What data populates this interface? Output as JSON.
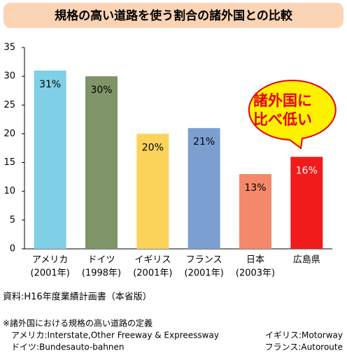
{
  "chart_data": {
    "type": "bar",
    "title": "規格の高い道路を使う割合の諸外国との比較",
    "categories": [
      "アメリカ",
      "ドイツ",
      "イギリス",
      "フランス",
      "日本",
      "広島県"
    ],
    "category_notes": [
      "(2001年)",
      "(1998年)",
      "(2001年)",
      "(2001年)",
      "(2003年)",
      null
    ],
    "values": [
      31,
      30,
      20,
      21,
      13,
      16
    ],
    "value_labels": [
      "31%",
      "30%",
      "20%",
      "21%",
      "13%",
      "16%"
    ],
    "colors": [
      "#7fcfe6",
      "#7f9468",
      "#fbd35a",
      "#7c9fd1",
      "#f4886b",
      "#f21b1b"
    ],
    "value_label_colors": [
      "#000000",
      "#000000",
      "#000000",
      "#000000",
      "#000000",
      "#ffffff"
    ],
    "ylim": [
      0,
      35
    ],
    "yticks": [
      0,
      5,
      10,
      15,
      20,
      25,
      30,
      35
    ],
    "grid": false,
    "annotation": [
      "諸外国に",
      "比べ低い"
    ],
    "source": "資料:H16年度業績計画書（本省版）",
    "notes": {
      "heading": "※諸外国における規格の高い道路の定義",
      "items": [
        "アメリカ:Interstate,Other Freeway & Expreessway",
        "イギリス:Motorway",
        "ドイツ:Bundesauto-bahnen",
        "フランス:Autoroute"
      ]
    }
  }
}
